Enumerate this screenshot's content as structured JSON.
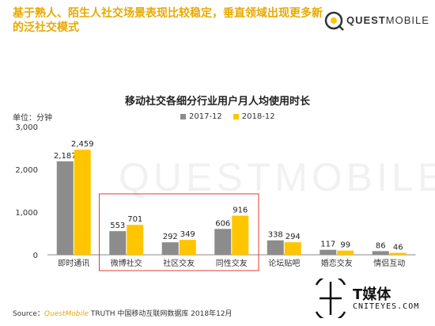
{
  "header": {
    "title": "基于熟人、陌生人社交场景表现比较稳定，垂直领域出现更多新的泛社交模式"
  },
  "logo": {
    "brand_bold": "QUEST",
    "brand_light": "MOBILE"
  },
  "watermark": "QUESTMOBILE",
  "source": {
    "label": "Source：",
    "brand": "QuestMobile",
    "text": " TRUTH 中国移动互联网数据库 2018年12月"
  },
  "tmt": {
    "name": "T媒体",
    "url": "CNITEYES.COM"
  },
  "colors": {
    "series_2017": "#8C8C8C",
    "series_2018": "#FFC600",
    "highlight_box": "#E03C31",
    "title": "#E9A900"
  },
  "chart_data": {
    "type": "bar",
    "title": "移动社交各细分行业用户月人均使用时长",
    "unit_label": "单位：分钟",
    "categories": [
      "即时通讯",
      "微博社交",
      "社区交友",
      "同性交友",
      "论坛贴吧",
      "婚恋交友",
      "情侣互动"
    ],
    "series": [
      {
        "name": "2017-12",
        "values": [
          2187,
          553,
          292,
          606,
          338,
          117,
          86
        ]
      },
      {
        "name": "2018-12",
        "values": [
          2459,
          701,
          349,
          916,
          294,
          99,
          46
        ]
      }
    ],
    "value_labels": [
      [
        "2,187",
        "553",
        "292",
        "606",
        "338",
        "117",
        "86"
      ],
      [
        "2,459",
        "701",
        "349",
        "916",
        "294",
        "99",
        "46"
      ]
    ],
    "yticks": [
      "0",
      "1,000",
      "2,000",
      "3,000"
    ],
    "ytick_values": [
      0,
      1000,
      2000,
      3000
    ],
    "ylim": [
      0,
      3000
    ],
    "legend_position": "top-center",
    "highlighted_categories": [
      "微博社交",
      "社区交友",
      "同性交友"
    ],
    "grid": false
  }
}
